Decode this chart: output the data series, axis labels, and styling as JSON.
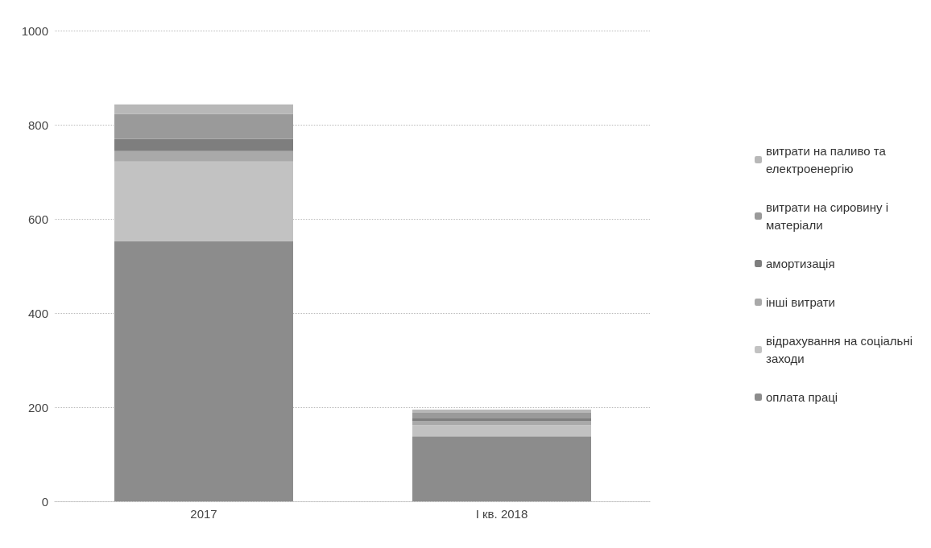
{
  "chart_data": {
    "type": "bar",
    "stacked": true,
    "categories": [
      "2017",
      "I кв. 2018"
    ],
    "series": [
      {
        "name": "оплата праці",
        "color": "#8c8c8c",
        "values": [
          553,
          138
        ]
      },
      {
        "name": "відрахування на соціальні\nзаходи",
        "color": "#c2c2c2",
        "values": [
          169,
          24
        ]
      },
      {
        "name": "інші витрати",
        "color": "#a9a9a9",
        "values": [
          22,
          8
        ]
      },
      {
        "name": "амортизація",
        "color": "#7e7e7e",
        "values": [
          26,
          6
        ]
      },
      {
        "name": "витрати на сировину і\nматеріали",
        "color": "#9a9a9a",
        "values": [
          53,
          12
        ]
      },
      {
        "name": "витрати на паливо та\nелектроенергію",
        "color": "#b8b8b8",
        "values": [
          20,
          7
        ]
      }
    ],
    "ylim": [
      0,
      1000
    ],
    "yticks": [
      0,
      200,
      400,
      600,
      800,
      1000
    ],
    "grid": "y",
    "legend": "right"
  }
}
